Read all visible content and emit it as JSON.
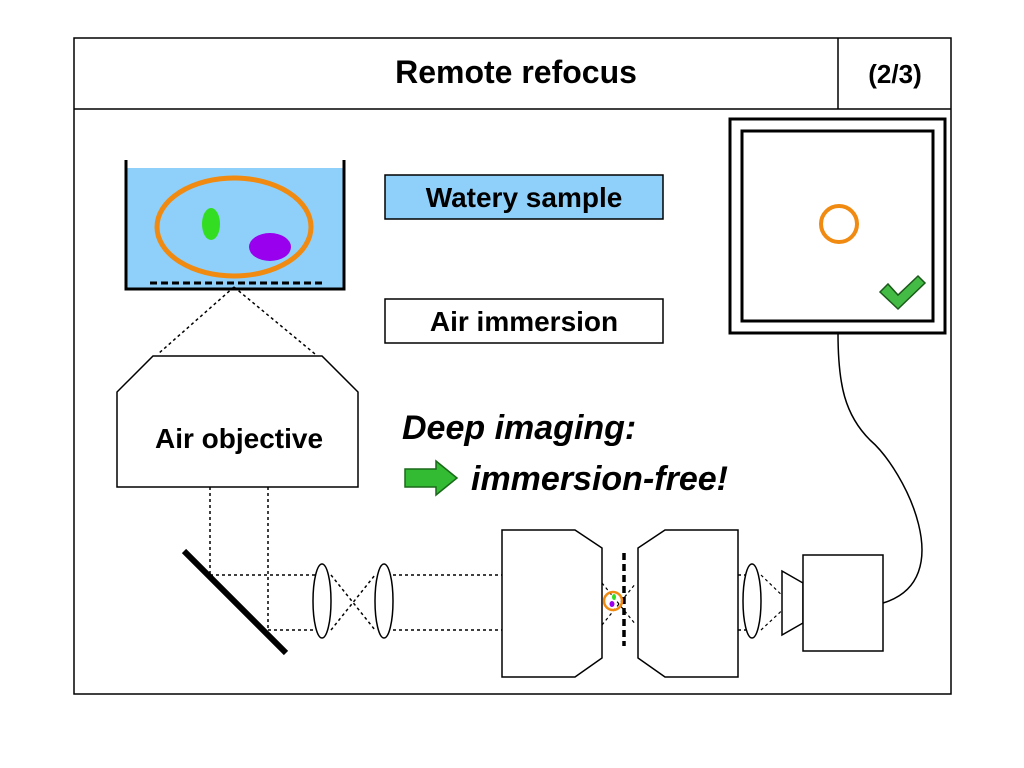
{
  "slide": {
    "title": "Remote refocus",
    "page_indicator": "(2/3)"
  },
  "labels": {
    "watery_sample": "Watery sample",
    "air_immersion": "Air immersion",
    "air_objective": "Air objective",
    "deep_imaging": "Deep imaging:",
    "immersion_free": "immersion-free!"
  },
  "colors": {
    "water": "#8fd0fa",
    "sample_outline": "#f08a10",
    "green_cell": "#33dd22",
    "purple_cell": "#9900ee",
    "arrow_green": "#33bb33",
    "check_green": "#44bb44",
    "line": "#000000"
  },
  "icons": [
    "right-arrow-icon",
    "checkmark-icon"
  ]
}
